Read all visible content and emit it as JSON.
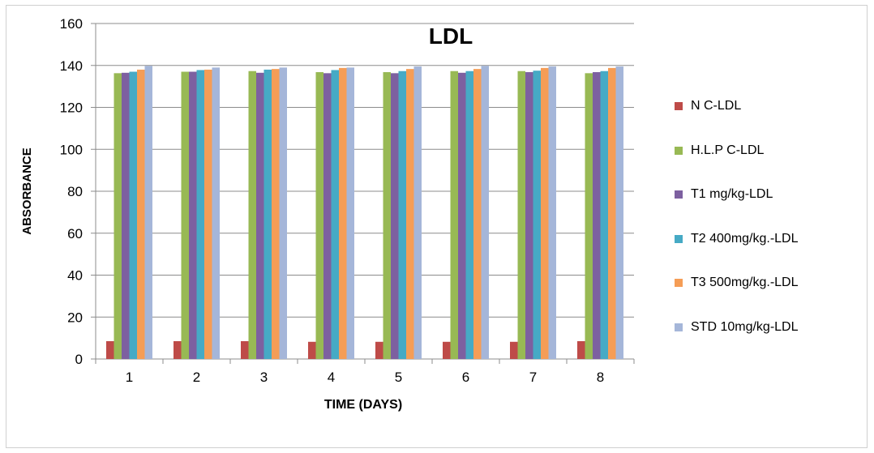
{
  "chart_data": {
    "type": "bar",
    "title": "LDL",
    "xlabel": "TIME (DAYS)",
    "ylabel": "ABSORBANCE",
    "ylim": [
      0,
      160
    ],
    "yticks": [
      0,
      20,
      40,
      60,
      80,
      100,
      120,
      140,
      160
    ],
    "categories": [
      "1",
      "2",
      "3",
      "4",
      "5",
      "6",
      "7",
      "8"
    ],
    "grid": true,
    "legend": "right",
    "series": [
      {
        "name": "N C-LDL",
        "color": "#be4b48",
        "values": [
          8.5,
          8.5,
          8.5,
          8.2,
          8.2,
          8.2,
          8.2,
          8.5
        ]
      },
      {
        "name": "H.L.P C-LDL",
        "color": "#98b954",
        "values": [
          136.3,
          137.0,
          137.3,
          136.8,
          136.8,
          137.3,
          137.3,
          136.3
        ]
      },
      {
        "name": "T1 mg/kg-LDL",
        "color": "#7d60a0",
        "values": [
          136.5,
          137.0,
          136.5,
          136.3,
          136.3,
          136.5,
          136.8,
          136.8
        ]
      },
      {
        "name": "T2 400mg/kg.-LDL",
        "color": "#46aac5",
        "values": [
          137.0,
          137.8,
          138.0,
          137.8,
          137.3,
          137.3,
          137.5,
          137.3
        ]
      },
      {
        "name": "T3 500mg/kg.-LDL",
        "color": "#f59d56",
        "values": [
          138.0,
          138.0,
          138.3,
          138.8,
          138.3,
          138.3,
          138.8,
          138.8
        ]
      },
      {
        "name": "STD 10mg/kg-LDL",
        "color": "#a5b6d9",
        "values": [
          139.8,
          139.0,
          139.0,
          139.0,
          139.5,
          139.8,
          139.5,
          139.5
        ]
      }
    ]
  }
}
